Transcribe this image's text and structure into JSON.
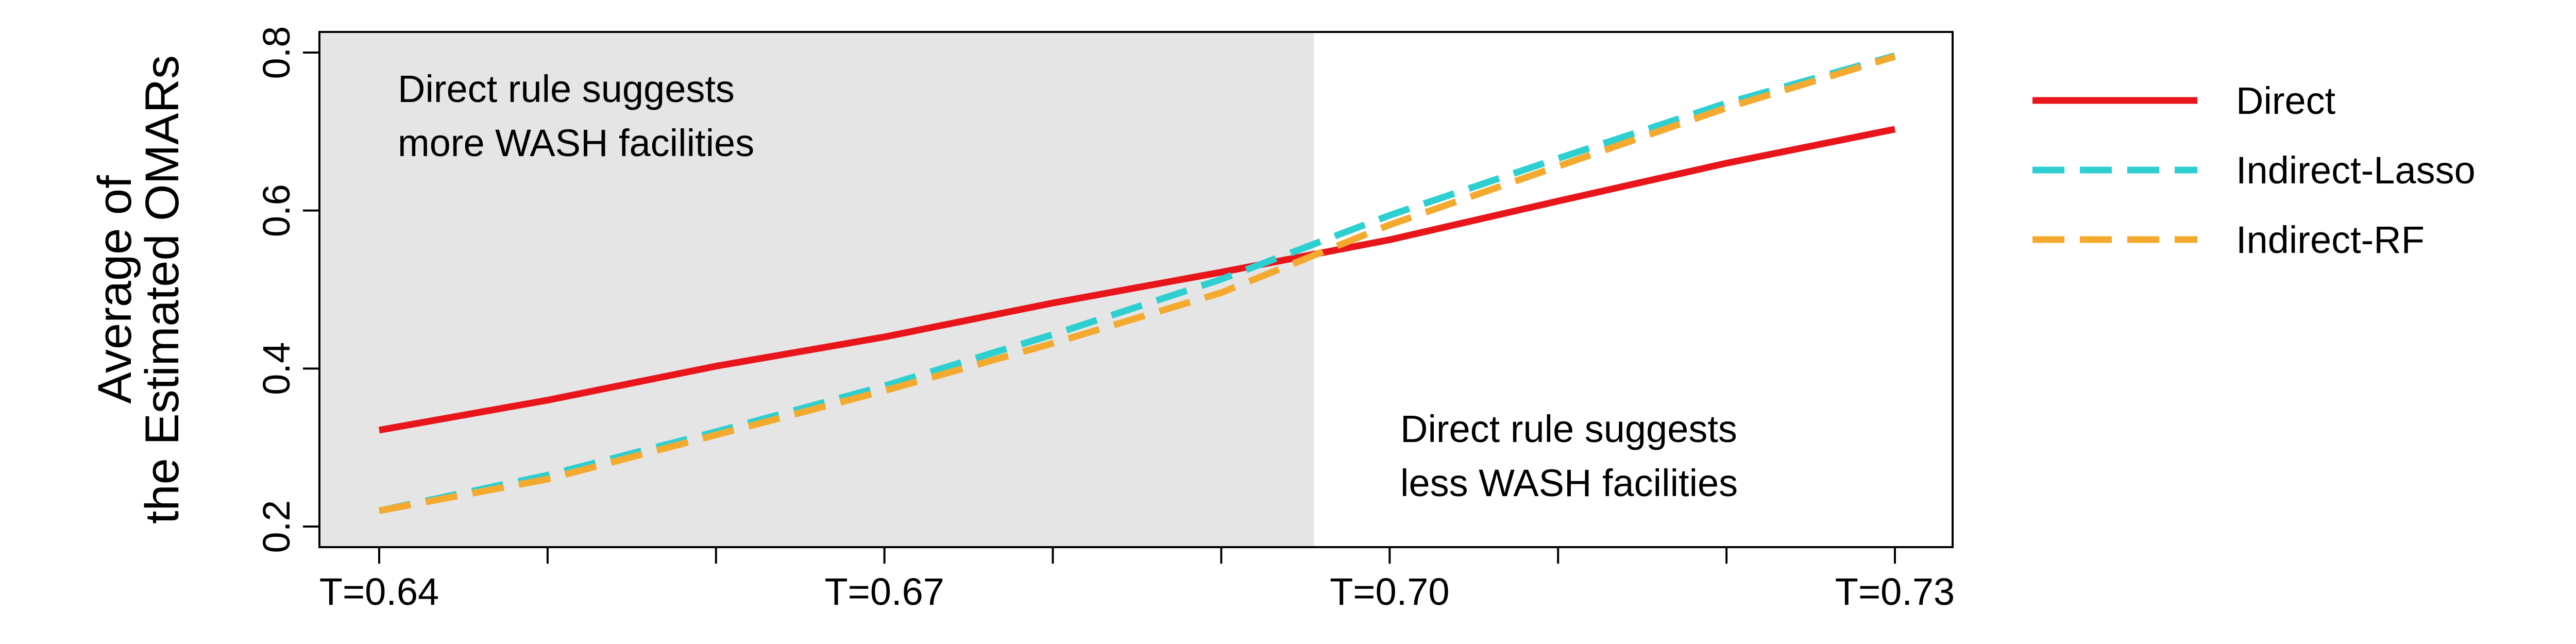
{
  "chart_data": {
    "type": "line",
    "title": "",
    "xlabel": "",
    "ylabel": [
      "Average of",
      "the Estimated OMARs"
    ],
    "x": [
      0.64,
      0.65,
      0.66,
      0.67,
      0.68,
      0.69,
      0.7,
      0.71,
      0.72,
      0.73
    ],
    "xlim": [
      0.64,
      0.73
    ],
    "ylim": [
      0.2,
      0.8
    ],
    "x_ticks": [
      0.64,
      0.65,
      0.66,
      0.67,
      0.68,
      0.69,
      0.7,
      0.71,
      0.72,
      0.73
    ],
    "x_tick_labels": [
      "T=0.64",
      "",
      "",
      "T=0.67",
      "",
      "",
      "T=0.70",
      "",
      "",
      "T=0.73"
    ],
    "y_ticks": [
      0.2,
      0.4,
      0.6,
      0.8
    ],
    "y_tick_labels": [
      "0.2",
      "0.4",
      "0.6",
      "0.8"
    ],
    "grid": false,
    "legend_position": "outside-right",
    "shaded_region": {
      "x_from": 0.64,
      "x_to": 0.6955,
      "color": "#e5e5e5"
    },
    "annotations": [
      {
        "lines": [
          "Direct rule suggests",
          "more WASH facilities"
        ],
        "anchor": "top-left-shaded"
      },
      {
        "lines": [
          "Direct rule suggests",
          "less WASH facilities"
        ],
        "anchor": "bottom-right"
      }
    ],
    "series": [
      {
        "name": "Direct",
        "color": "#e8151b",
        "dash": "solid",
        "values": [
          0.322,
          0.36,
          0.403,
          0.44,
          0.483,
          0.522,
          0.563,
          0.612,
          0.66,
          0.703
        ]
      },
      {
        "name": "Indirect-Lasso",
        "color": "#2ecfd0",
        "dash": "dashed",
        "values": [
          0.22,
          0.265,
          0.32,
          0.378,
          0.443,
          0.513,
          0.594,
          0.666,
          0.736,
          0.796
        ]
      },
      {
        "name": "Indirect-RF",
        "color": "#f4aa2f",
        "dash": "dashed",
        "values": [
          0.22,
          0.26,
          0.316,
          0.372,
          0.432,
          0.496,
          0.582,
          0.656,
          0.73,
          0.795
        ]
      }
    ]
  }
}
